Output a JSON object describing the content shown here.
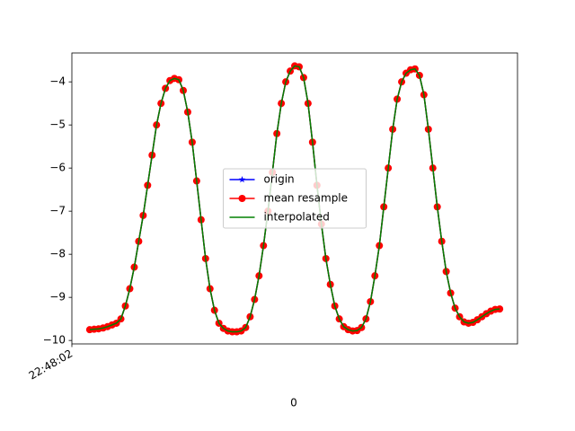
{
  "chart_data": {
    "type": "line",
    "xlabel": "0",
    "x": [
      4,
      5,
      6,
      7,
      8,
      9,
      10,
      11,
      12,
      13,
      14,
      15,
      16,
      17,
      18,
      19,
      20,
      21,
      22,
      23,
      24,
      25,
      26,
      27,
      28,
      29,
      30,
      31,
      32,
      33,
      34,
      35,
      36,
      37,
      38,
      39,
      40,
      41,
      42,
      43,
      44,
      45,
      46,
      47,
      48,
      49,
      50,
      51,
      52,
      53,
      54,
      55,
      56,
      57,
      58,
      59,
      60,
      61,
      62,
      63,
      64,
      65,
      66,
      67,
      68,
      69,
      70,
      71,
      72,
      73,
      74,
      75,
      76,
      77,
      78,
      79,
      80,
      81,
      82,
      83,
      84,
      85,
      86,
      87,
      88,
      89,
      90,
      91,
      92,
      93,
      94,
      95,
      96
    ],
    "series": [
      {
        "name": "origin",
        "color": "#0000ff",
        "marker": "star",
        "values": [
          -9.75,
          -9.74,
          -9.73,
          -9.71,
          -9.68,
          -9.64,
          -9.6,
          -9.5,
          -9.2,
          -8.8,
          -8.3,
          -7.7,
          -7.1,
          -6.4,
          -5.7,
          -5.0,
          -4.5,
          -4.15,
          -3.97,
          -3.92,
          -3.95,
          -4.2,
          -4.7,
          -5.4,
          -6.3,
          -7.2,
          -8.1,
          -8.8,
          -9.3,
          -9.6,
          -9.72,
          -9.78,
          -9.8,
          -9.8,
          -9.78,
          -9.7,
          -9.45,
          -9.05,
          -8.5,
          -7.8,
          -7.0,
          -6.1,
          -5.2,
          -4.5,
          -4.0,
          -3.75,
          -3.63,
          -3.65,
          -3.9,
          -4.5,
          -5.4,
          -6.4,
          -7.3,
          -8.1,
          -8.7,
          -9.2,
          -9.5,
          -9.68,
          -9.75,
          -9.78,
          -9.77,
          -9.7,
          -9.5,
          -9.1,
          -8.5,
          -7.8,
          -6.9,
          -6.0,
          -5.1,
          -4.4,
          -4.0,
          -3.8,
          -3.72,
          -3.7,
          -3.85,
          -4.3,
          -5.1,
          -6.0,
          -6.9,
          -7.7,
          -8.4,
          -8.9,
          -9.25,
          -9.45,
          -9.57,
          -9.6,
          -9.58,
          -9.52,
          -9.45,
          -9.38,
          -9.32,
          -9.28,
          -9.27
        ]
      },
      {
        "name": "mean resample",
        "color": "#ff0000",
        "marker": "circle",
        "values": [
          -9.75,
          -9.74,
          -9.73,
          -9.71,
          -9.68,
          -9.64,
          -9.6,
          -9.5,
          -9.2,
          -8.8,
          -8.3,
          -7.7,
          -7.1,
          -6.4,
          -5.7,
          -5.0,
          -4.5,
          -4.15,
          -3.97,
          -3.92,
          -3.95,
          -4.2,
          -4.7,
          -5.4,
          -6.3,
          -7.2,
          -8.1,
          -8.8,
          -9.3,
          -9.6,
          -9.72,
          -9.78,
          -9.8,
          -9.8,
          -9.78,
          -9.7,
          -9.45,
          -9.05,
          -8.5,
          -7.8,
          -7.0,
          -6.1,
          -5.2,
          -4.5,
          -4.0,
          -3.75,
          -3.63,
          -3.65,
          -3.9,
          -4.5,
          -5.4,
          -6.4,
          -7.3,
          -8.1,
          -8.7,
          -9.2,
          -9.5,
          -9.68,
          -9.75,
          -9.78,
          -9.77,
          -9.7,
          -9.5,
          -9.1,
          -8.5,
          -7.8,
          -6.9,
          -6.0,
          -5.1,
          -4.4,
          -4.0,
          -3.8,
          -3.72,
          -3.7,
          -3.85,
          -4.3,
          -5.1,
          -6.0,
          -6.9,
          -7.7,
          -8.4,
          -8.9,
          -9.25,
          -9.45,
          -9.57,
          -9.6,
          -9.58,
          -9.52,
          -9.45,
          -9.38,
          -9.32,
          -9.28,
          -9.27
        ]
      },
      {
        "name": "interpolated",
        "color": "#008000",
        "marker": "none",
        "values": [
          -9.75,
          -9.74,
          -9.73,
          -9.71,
          -9.68,
          -9.64,
          -9.6,
          -9.5,
          -9.2,
          -8.8,
          -8.3,
          -7.7,
          -7.1,
          -6.4,
          -5.7,
          -5.0,
          -4.5,
          -4.15,
          -3.97,
          -3.92,
          -3.95,
          -4.2,
          -4.7,
          -5.4,
          -6.3,
          -7.2,
          -8.1,
          -8.8,
          -9.3,
          -9.6,
          -9.72,
          -9.78,
          -9.8,
          -9.8,
          -9.78,
          -9.7,
          -9.45,
          -9.05,
          -8.5,
          -7.8,
          -7.0,
          -6.1,
          -5.2,
          -4.5,
          -4.0,
          -3.75,
          -3.63,
          -3.65,
          -3.9,
          -4.5,
          -5.4,
          -6.4,
          -7.3,
          -8.1,
          -8.7,
          -9.2,
          -9.5,
          -9.68,
          -9.75,
          -9.78,
          -9.77,
          -9.7,
          -9.5,
          -9.1,
          -8.5,
          -7.8,
          -6.9,
          -6.0,
          -5.1,
          -4.4,
          -4.0,
          -3.8,
          -3.72,
          -3.7,
          -3.85,
          -4.3,
          -5.1,
          -6.0,
          -6.9,
          -7.7,
          -8.4,
          -8.9,
          -9.25,
          -9.45,
          -9.57,
          -9.6,
          -9.58,
          -9.52,
          -9.45,
          -9.38,
          -9.32,
          -9.28,
          -9.27
        ]
      }
    ],
    "xlim": [
      0,
      100
    ],
    "xticks": [
      {
        "value": 0,
        "label": "22:48:02"
      }
    ],
    "ylim": [
      -10.08,
      -3.33
    ],
    "yticks": [
      {
        "value": -10,
        "label": "−10"
      },
      {
        "value": -9,
        "label": "−9"
      },
      {
        "value": -8,
        "label": "−8"
      },
      {
        "value": -7,
        "label": "−7"
      },
      {
        "value": -6,
        "label": "−6"
      },
      {
        "value": -5,
        "label": "−5"
      },
      {
        "value": -4,
        "label": "−4"
      }
    ],
    "legend": "center"
  }
}
